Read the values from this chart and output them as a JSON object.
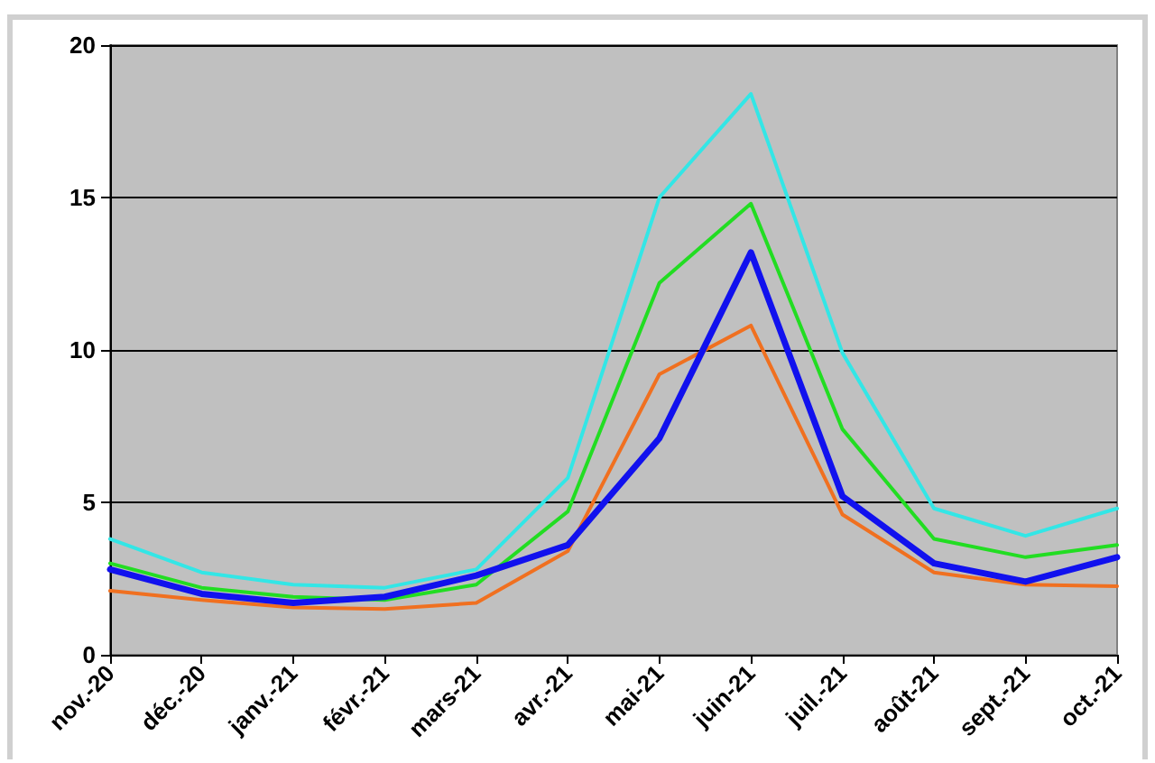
{
  "chart_data": {
    "type": "line",
    "categories": [
      "nov.-20",
      "déc.-20",
      "janv.-21",
      "févr.-21",
      "mars-21",
      "avr.-21",
      "mai-21",
      "juin-21",
      "juil.-21",
      "août-21",
      "sept.-21",
      "oct.-21"
    ],
    "series": [
      {
        "color": "#33e6e6",
        "values": [
          3.8,
          2.7,
          2.3,
          2.2,
          2.8,
          5.8,
          15,
          18.4,
          9.9,
          4.8,
          3.9,
          4.8
        ]
      },
      {
        "color": "#22dd22",
        "values": [
          3.0,
          2.2,
          1.9,
          1.8,
          2.3,
          4.7,
          12.2,
          14.8,
          7.4,
          3.8,
          3.2,
          3.6
        ]
      },
      {
        "color": "#f07020",
        "values": [
          2.1,
          1.8,
          1.55,
          1.5,
          1.7,
          3.4,
          9.2,
          10.8,
          4.6,
          2.7,
          2.3,
          2.25
        ]
      },
      {
        "color": "#1111ee",
        "values": [
          2.8,
          2.0,
          1.7,
          1.9,
          2.6,
          3.6,
          7.1,
          13.2,
          5.2,
          3.0,
          2.4,
          3.2
        ]
      }
    ],
    "ylim": [
      0,
      20
    ],
    "yticks": [
      0,
      5,
      10,
      15,
      20
    ],
    "grid": "y",
    "marker": "none",
    "line_style": "solid"
  }
}
